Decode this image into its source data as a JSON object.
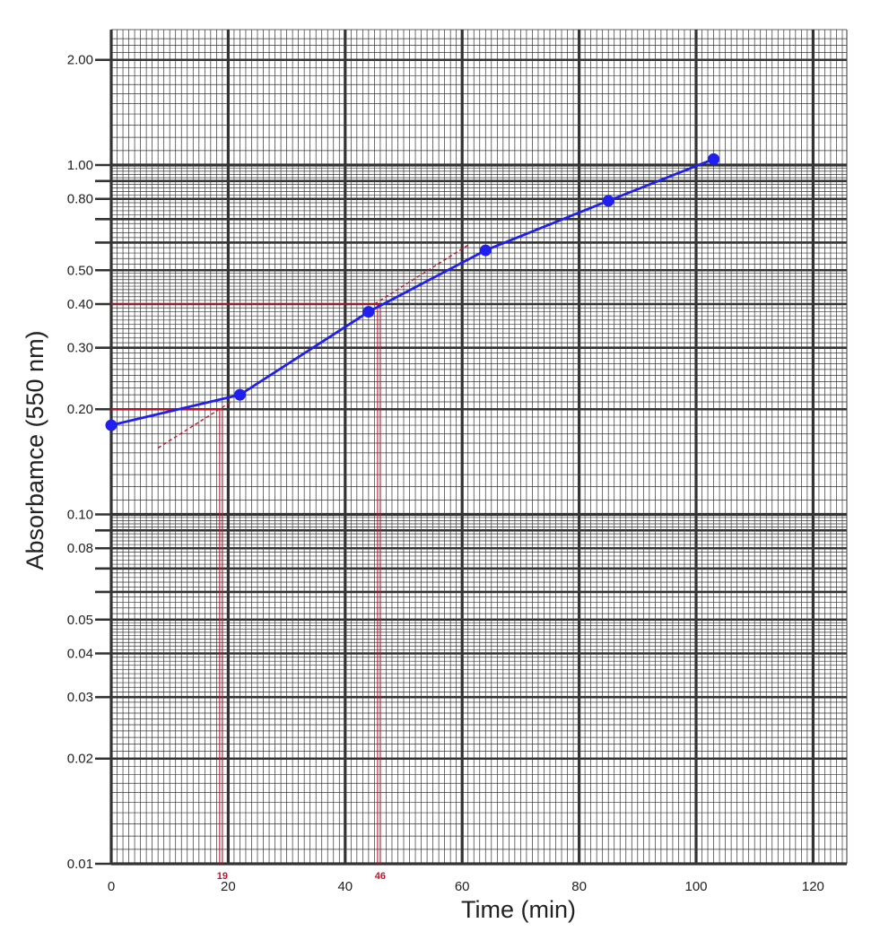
{
  "chart_data": {
    "type": "line",
    "xlabel": "Time (min)",
    "ylabel": "Absorbamce (550 nm)",
    "xlim": [
      0,
      126
    ],
    "ylim": [
      0.01,
      2.3
    ],
    "yscale": "log",
    "grid": true,
    "x_ticks": [
      "0",
      "20",
      "40",
      "60",
      "80",
      "100",
      "120"
    ],
    "y_ticks": [
      "2.00",
      "1.00",
      "0.80",
      "0.50",
      "0.40",
      "0.30",
      "0.20",
      "0.10",
      "0.08",
      "0.05",
      "0.04",
      "0.03",
      "0.02",
      "0.01"
    ],
    "series": [
      {
        "x": [
          0,
          22,
          44,
          64,
          85,
          103
        ],
        "y": [
          0.18,
          0.22,
          0.38,
          0.57,
          0.79,
          1.04
        ],
        "color": "#1f1ff0"
      }
    ],
    "annotations": [
      {
        "text": "19",
        "x": 19,
        "y": 0.2,
        "color": "#c0142b"
      },
      {
        "text": "46",
        "x": 46,
        "y": 0.4,
        "color": "#c0142b"
      }
    ],
    "tangent_lines": [
      {
        "x": [
          8,
          20.5
        ],
        "y": [
          0.155,
          0.21
        ],
        "color": "#c0142b",
        "style": "dashed"
      },
      {
        "x": [
          45,
          61
        ],
        "y": [
          0.4,
          0.59
        ],
        "color": "#c0142b",
        "style": "dashed"
      }
    ],
    "colors": {
      "grid": "#333333",
      "series": "#1f1ff0",
      "annotation": "#c0142b"
    }
  }
}
